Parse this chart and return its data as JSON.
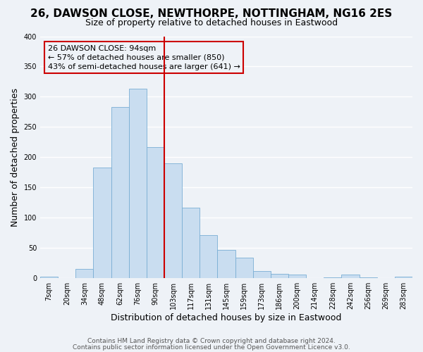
{
  "title": "26, DAWSON CLOSE, NEWTHORPE, NOTTINGHAM, NG16 2ES",
  "subtitle": "Size of property relative to detached houses in Eastwood",
  "xlabel": "Distribution of detached houses by size in Eastwood",
  "ylabel": "Number of detached properties",
  "bin_labels": [
    "7sqm",
    "20sqm",
    "34sqm",
    "48sqm",
    "62sqm",
    "76sqm",
    "90sqm",
    "103sqm",
    "117sqm",
    "131sqm",
    "145sqm",
    "159sqm",
    "173sqm",
    "186sqm",
    "200sqm",
    "214sqm",
    "228sqm",
    "242sqm",
    "256sqm",
    "269sqm",
    "283sqm"
  ],
  "bar_heights": [
    2,
    0,
    15,
    183,
    283,
    313,
    217,
    190,
    116,
    71,
    46,
    33,
    11,
    7,
    5,
    0,
    1,
    5,
    1,
    0,
    2
  ],
  "bar_color": "#c9ddf0",
  "bar_edge_color": "#7aaed4",
  "highlight_bar_index": 6,
  "highlight_line_color": "#cc0000",
  "annotation_line1": "26 DAWSON CLOSE: 94sqm",
  "annotation_line2": "← 57% of detached houses are smaller (850)",
  "annotation_line3": "43% of semi-detached houses are larger (641) →",
  "annotation_box_edge_color": "#cc0000",
  "ylim": [
    0,
    400
  ],
  "yticks": [
    0,
    50,
    100,
    150,
    200,
    250,
    300,
    350,
    400
  ],
  "background_color": "#eef2f7",
  "grid_color": "#ffffff",
  "title_fontsize": 11,
  "subtitle_fontsize": 9,
  "axis_label_fontsize": 9,
  "tick_fontsize": 7,
  "annotation_fontsize": 8,
  "footer_fontsize": 6.5
}
